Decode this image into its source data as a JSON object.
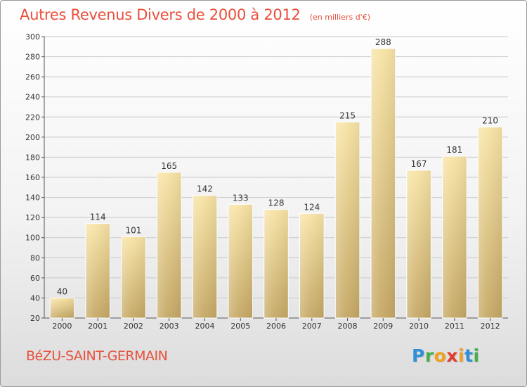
{
  "header": {
    "title": "Autres Revenus Divers de 2000 à 2012",
    "subtitle": "(en milliers d'€)"
  },
  "footer": {
    "commune": "BéZU-SAINT-GERMAIN",
    "logo_letters": [
      {
        "ch": "P",
        "color": "#2f8fd8"
      },
      {
        "ch": "r",
        "color": "#45b04b"
      },
      {
        "ch": "o",
        "color": "#f0a01e"
      },
      {
        "ch": "x",
        "color": "#e23b2e"
      },
      {
        "ch": "i",
        "color": "#f0a01e"
      },
      {
        "ch": "t",
        "color": "#2f8fd8"
      },
      {
        "ch": "i",
        "color": "#45b04b"
      }
    ]
  },
  "chart_data": {
    "type": "bar",
    "title": "Autres Revenus Divers de 2000 à 2012",
    "subtitle": "(en milliers d'€)",
    "xlabel": "",
    "ylabel": "",
    "categories": [
      "2000",
      "2001",
      "2002",
      "2003",
      "2004",
      "2005",
      "2006",
      "2007",
      "2008",
      "2009",
      "2010",
      "2011",
      "2012"
    ],
    "values": [
      40,
      114,
      101,
      165,
      142,
      133,
      128,
      124,
      215,
      288,
      167,
      181,
      210
    ],
    "ylim": [
      20,
      300
    ],
    "yticks": [
      20,
      40,
      60,
      80,
      100,
      120,
      140,
      160,
      180,
      200,
      220,
      240,
      260,
      280,
      300
    ],
    "grid": true,
    "legend": "none",
    "colors": {
      "bar_light": "#f8e4a6",
      "bar_dark": "#c5a865",
      "grid": "#c8c8c8",
      "axis": "#555555"
    }
  }
}
